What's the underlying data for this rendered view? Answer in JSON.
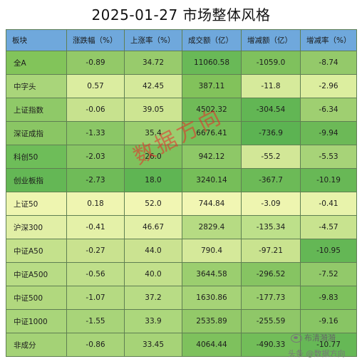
{
  "title": "2025-01-27 市场整体风格",
  "headers": [
    "板块",
    "涨跌幅（%）",
    "上涨率（%）",
    "成交额（亿）",
    "增减额（亿）",
    "增减率（%）"
  ],
  "rows": [
    {
      "cells": [
        "全A",
        "-0.89",
        "34.72",
        "11060.58",
        "-1059.0",
        "-8.74"
      ]
    },
    {
      "cells": [
        "中字头",
        "0.57",
        "42.45",
        "387.11",
        "-11.8",
        "-2.96"
      ]
    },
    {
      "cells": [
        "上证指数",
        "-0.06",
        "39.05",
        "4502.32",
        "-304.54",
        "-6.34"
      ]
    },
    {
      "cells": [
        "深证成指",
        "-1.33",
        "35.4",
        "6676.41",
        "-736.9",
        "-9.94"
      ]
    },
    {
      "cells": [
        "科创50",
        "-2.03",
        "26.0",
        "942.12",
        "-55.2",
        "-5.53"
      ]
    },
    {
      "cells": [
        "创业板指",
        "-2.73",
        "18.0",
        "3240.14",
        "-367.7",
        "-10.19"
      ]
    },
    {
      "cells": [
        "上证50",
        "0.18",
        "52.0",
        "744.84",
        "-3.09",
        "-0.41"
      ]
    },
    {
      "cells": [
        "沪深300",
        "-0.41",
        "46.67",
        "2829.4",
        "-135.34",
        "-4.57"
      ]
    },
    {
      "cells": [
        "中证A50",
        "-0.27",
        "44.0",
        "790.4",
        "-97.21",
        "-10.95"
      ]
    },
    {
      "cells": [
        "中证A500",
        "-0.56",
        "40.0",
        "3644.58",
        "-296.52",
        "-7.52"
      ]
    },
    {
      "cells": [
        "中证500",
        "-1.07",
        "37.2",
        "1630.86",
        "-177.73",
        "-9.83"
      ]
    },
    {
      "cells": [
        "中证1000",
        "-1.55",
        "33.9",
        "2535.89",
        "-255.59",
        "-9.16"
      ]
    },
    {
      "cells": [
        "非成分",
        "-0.86",
        "33.45",
        "4064.44",
        "-490.33",
        "-10.77"
      ]
    }
  ],
  "watermark": "数据方向",
  "brand": "布清漪漪",
  "source": "头条 @数据方向",
  "colors": {
    "header_bg": "#6fa8dc",
    "gradient_strong_green": "#4caf50",
    "gradient_light_green": "#c9e89a",
    "gradient_yellow": "#f6f7a8",
    "watermark_red": "#eb2828"
  },
  "cell_colors": [
    [
      "#82c45a",
      "#93c968",
      "#98cb6c",
      "#69b957",
      "#7fc15d",
      "#94c96a"
    ],
    [
      "#a9d57a",
      "#dbeda0",
      "#d4e99a",
      "#82c25b",
      "#d6ea9b",
      "#dcee9f"
    ],
    [
      "#8fc968",
      "#c7e28e",
      "#cde592",
      "#70bb58",
      "#62b654",
      "#9fcf71"
    ],
    [
      "#8ac664",
      "#8bc766",
      "#9bcd6f",
      "#76be59",
      "#5cb352",
      "#6cb957"
    ],
    [
      "#6ebd59",
      "#88c564",
      "#7fc15d",
      "#8ec867",
      "#d2e797",
      "#a7d378"
    ],
    [
      "#64b755",
      "#6fbb58",
      "#5fb553",
      "#76be59",
      "#6cba57",
      "#68b856"
    ],
    [
      "#eef5b0",
      "#eff5b1",
      "#f1f6b3",
      "#f1f6b3",
      "#eef5b0",
      "#e8f3ab"
    ],
    [
      "#e1efa6",
      "#e4f1a8",
      "#e2f0a7",
      "#b6db83",
      "#bde08a",
      "#c8e38f"
    ],
    [
      "#c4e18c",
      "#c9e28f",
      "#cbe391",
      "#d5e99a",
      "#c9e38f",
      "#64b755"
    ],
    [
      "#b8dc85",
      "#bfdf8a",
      "#c2e08b",
      "#9bce6f",
      "#86c462",
      "#92c96a"
    ],
    [
      "#b1d87e",
      "#b5da82",
      "#b8dc85",
      "#a6d377",
      "#9bce6f",
      "#7ec15d"
    ],
    [
      "#a9d57a",
      "#a8d479",
      "#acd77c",
      "#93c969",
      "#8fc768",
      "#88c564"
    ],
    [
      "#a4d276",
      "#a8d479",
      "#a6d377",
      "#7ec15d",
      "#72bd59",
      "#66b856"
    ]
  ]
}
